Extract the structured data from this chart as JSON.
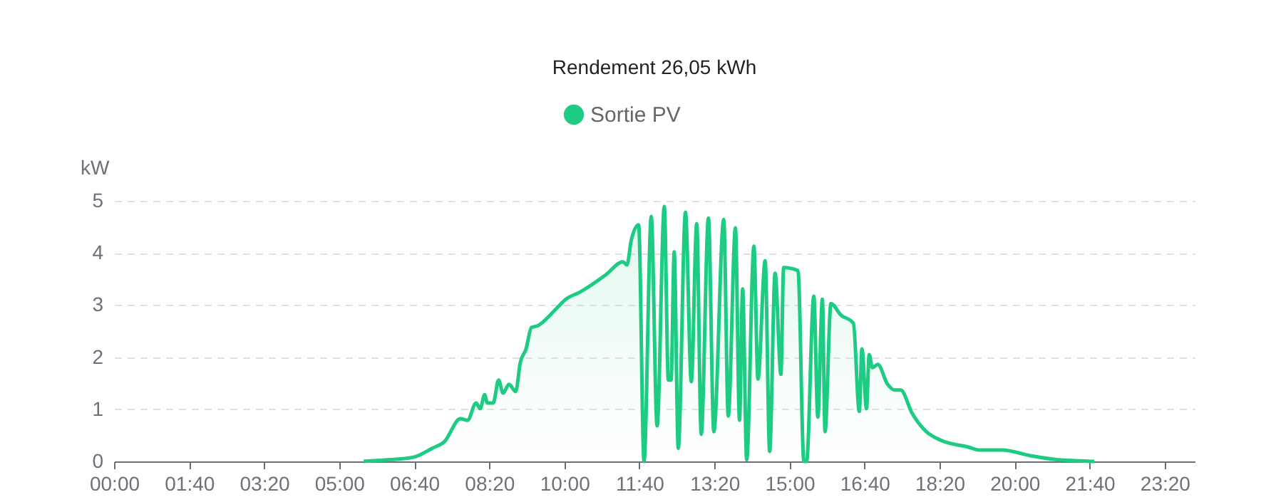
{
  "chart_data": {
    "type": "area",
    "title": "Rendement 26,05 kWh",
    "ylabel": "kW",
    "x": [
      5.54,
      6.08,
      6.65,
      7.06,
      7.34,
      7.69,
      7.85,
      8.04,
      8.13,
      8.23,
      8.29,
      8.42,
      8.54,
      8.64,
      8.77,
      8.92,
      9.02,
      9.15,
      9.27,
      9.4,
      9.81,
      10.03,
      10.35,
      10.92,
      11.3,
      11.39,
      11.49,
      11.65,
      11.77,
      11.93,
      12.06,
      12.22,
      12.31,
      12.37,
      12.44,
      12.53,
      12.69,
      12.82,
      12.94,
      13.04,
      13.2,
      13.32,
      13.54,
      13.64,
      13.8,
      13.89,
      13.96,
      14.05,
      14.21,
      14.3,
      14.46,
      14.56,
      14.68,
      14.81,
      14.87,
      15.19,
      15.32,
      15.38,
      15.54,
      15.63,
      15.73,
      15.79,
      15.92,
      16.14,
      16.42,
      16.55,
      16.61,
      16.71,
      16.77,
      16.84,
      16.96,
      17.18,
      17.34,
      17.47,
      17.72,
      18.04,
      18.35,
      18.99,
      19.2,
      19.72,
      20.35,
      20.98,
      21.77
    ],
    "series": [
      {
        "name": "Sortie PV",
        "color": "#1ecb82",
        "values": [
          0,
          0.03,
          0.08,
          0.25,
          0.38,
          0.82,
          0.79,
          1.12,
          1.01,
          1.28,
          1.12,
          1.12,
          1.56,
          1.31,
          1.48,
          1.34,
          1.89,
          2.16,
          2.57,
          2.6,
          2.92,
          3.11,
          3.25,
          3.58,
          3.83,
          3.77,
          4.26,
          4.54,
          0,
          4.7,
          0.68,
          4.89,
          1.56,
          1.56,
          4.02,
          0.25,
          4.78,
          1.53,
          4.56,
          0.52,
          4.67,
          0.57,
          4.64,
          0.87,
          4.48,
          0.79,
          3.31,
          0.03,
          4.13,
          1.58,
          3.85,
          0.19,
          3.61,
          1.67,
          3.72,
          3.66,
          0,
          0,
          3.17,
          0.85,
          3.11,
          0.57,
          3.03,
          2.81,
          2.65,
          0.96,
          2.16,
          1.01,
          2.05,
          1.8,
          1.86,
          1.48,
          1.37,
          1.37,
          0.93,
          0.57,
          0.41,
          0.27,
          0.22,
          0.22,
          0.11,
          0.03,
          0
        ]
      }
    ],
    "xlim": [
      0,
      24
    ],
    "xticks": [
      {
        "value": 0,
        "label": "00:00"
      },
      {
        "value": 1.6667,
        "label": "01:40"
      },
      {
        "value": 3.3333,
        "label": "03:20"
      },
      {
        "value": 5,
        "label": "05:00"
      },
      {
        "value": 6.6667,
        "label": "06:40"
      },
      {
        "value": 8.3333,
        "label": "08:20"
      },
      {
        "value": 10,
        "label": "10:00"
      },
      {
        "value": 11.6667,
        "label": "11:40"
      },
      {
        "value": 13.3333,
        "label": "13:20"
      },
      {
        "value": 15,
        "label": "15:00"
      },
      {
        "value": 16.6667,
        "label": "16:40"
      },
      {
        "value": 18.3333,
        "label": "18:20"
      },
      {
        "value": 20,
        "label": "20:00"
      },
      {
        "value": 21.6667,
        "label": "21:40"
      },
      {
        "value": 23.3333,
        "label": "23:20"
      }
    ],
    "ylim": [
      0,
      5
    ],
    "yticks": [
      0,
      1,
      2,
      3,
      4,
      5
    ],
    "grid": "y",
    "legend": "top",
    "line_style": "solid"
  }
}
